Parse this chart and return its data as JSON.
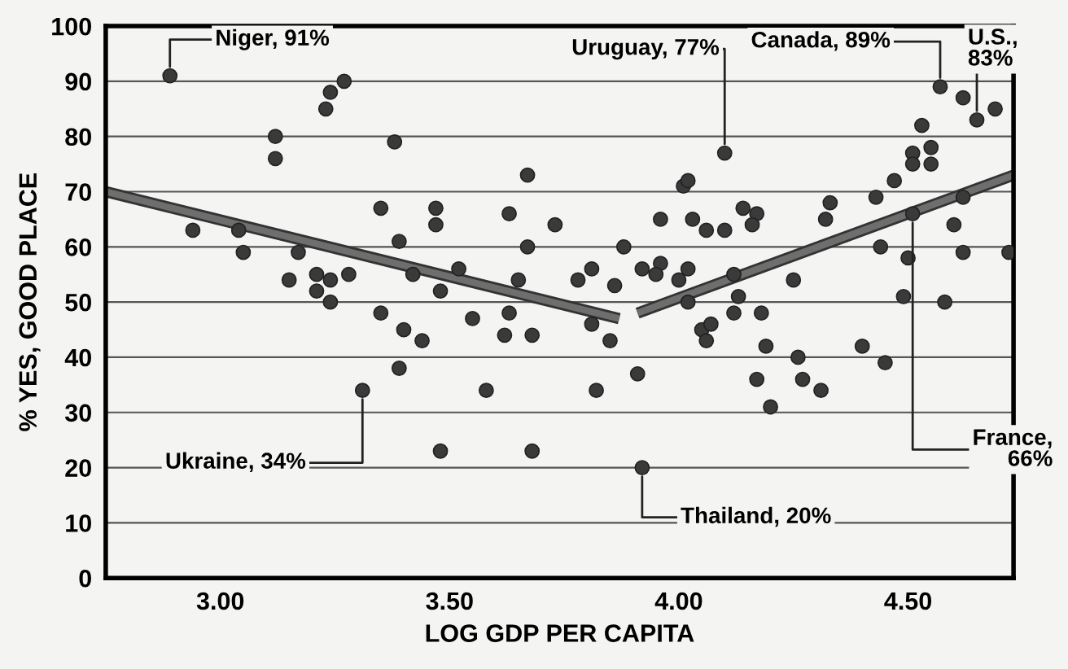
{
  "chart_data": {
    "type": "scatter",
    "xlabel": "LOG GDP PER CAPITA",
    "ylabel": "% YES, GOOD PLACE",
    "xlim": [
      2.75,
      4.73
    ],
    "ylim": [
      0,
      100
    ],
    "xticks": [
      {
        "value": 3,
        "label": "3.00"
      },
      {
        "value": 3.5,
        "label": "3.50"
      },
      {
        "value": 4,
        "label": "4.00"
      },
      {
        "value": 4.5,
        "label": "4.50"
      }
    ],
    "yticks": [
      0,
      10,
      20,
      30,
      40,
      50,
      60,
      70,
      80,
      90,
      100
    ],
    "grid": "y",
    "marker": "circle",
    "series": [
      {
        "color": "#3a3a3a",
        "x": [
          2.89,
          3.24,
          3.23,
          3.27,
          3.12,
          3.12,
          3.38,
          3.67,
          2.94,
          3.04,
          3.05,
          3.35,
          3.39,
          3.47,
          3.47,
          3.63,
          3.73,
          3.17,
          3.15,
          3.21,
          3.24,
          3.28,
          3.42,
          3.52,
          3.67,
          3.65,
          3.48,
          3.21,
          3.24,
          3.35,
          3.4,
          3.44,
          3.39,
          3.31,
          3.55,
          3.63,
          3.62,
          3.68,
          3.58,
          3.48,
          3.68,
          4.57,
          4.65,
          4.62,
          4.69,
          4.1,
          4.53,
          4.51,
          4.55,
          4.51,
          4.55,
          4.47,
          4.43,
          4.51,
          4.62,
          4.6,
          4.62,
          4.72,
          4.44,
          4.5,
          4.49,
          4.58,
          4.01,
          4.02,
          3.96,
          4.03,
          4.06,
          4.1,
          4.14,
          4.17,
          4.16,
          4.33,
          4.32,
          3.88,
          3.78,
          3.81,
          3.86,
          3.92,
          3.96,
          3.95,
          4.02,
          4.0,
          4.12,
          4.25,
          4.13,
          4.12,
          4.02,
          4.18,
          4.05,
          4.07,
          4.06,
          4.19,
          4.26,
          4.17,
          4.27,
          4.31,
          4.2,
          4.4,
          4.45,
          3.81,
          3.85,
          3.91,
          3.82,
          3.92
        ],
        "values": [
          91,
          88,
          85,
          90,
          80,
          76,
          79,
          73,
          63,
          63,
          59,
          67,
          61,
          67,
          64,
          66,
          64,
          59,
          54,
          55,
          54,
          55,
          55,
          56,
          60,
          54,
          52,
          52,
          50,
          48,
          45,
          43,
          38,
          34,
          47,
          48,
          44,
          44,
          34,
          23,
          23,
          89,
          83,
          87,
          85,
          77,
          82,
          77,
          78,
          75,
          75,
          72,
          69,
          66,
          69,
          64,
          59,
          59,
          60,
          58,
          51,
          50,
          71,
          72,
          65,
          65,
          63,
          63,
          67,
          66,
          64,
          68,
          65,
          60,
          54,
          56,
          53,
          56,
          57,
          55,
          56,
          54,
          55,
          54,
          51,
          48,
          50,
          48,
          45,
          46,
          43,
          42,
          40,
          36,
          36,
          34,
          31,
          42,
          39,
          46,
          43,
          37,
          34,
          20
        ]
      },
      {
        "type": "line",
        "marker": "none",
        "color": "#6e6e6e",
        "x": [
          2.75,
          3.87
        ],
        "values": [
          70,
          47
        ]
      },
      {
        "type": "line",
        "marker": "none",
        "color": "#6e6e6e",
        "x": [
          3.91,
          4.73
        ],
        "values": [
          48,
          73
        ]
      }
    ],
    "annotations": [
      {
        "text": "Niger, 91%",
        "x": 2.89,
        "y": 91
      },
      {
        "text": "Canada, 89%",
        "x": 4.57,
        "y": 89
      },
      {
        "text": "U.S.,\n83%",
        "x": 4.65,
        "y": 83
      },
      {
        "text": "Uruguay, 77%",
        "x": 4.1,
        "y": 77
      },
      {
        "text": "France,\n66%",
        "x": 4.51,
        "y": 66
      },
      {
        "text": "Ukraine, 34%",
        "x": 3.31,
        "y": 34
      },
      {
        "text": "Thailand, 20%",
        "x": 3.92,
        "y": 20
      }
    ]
  }
}
